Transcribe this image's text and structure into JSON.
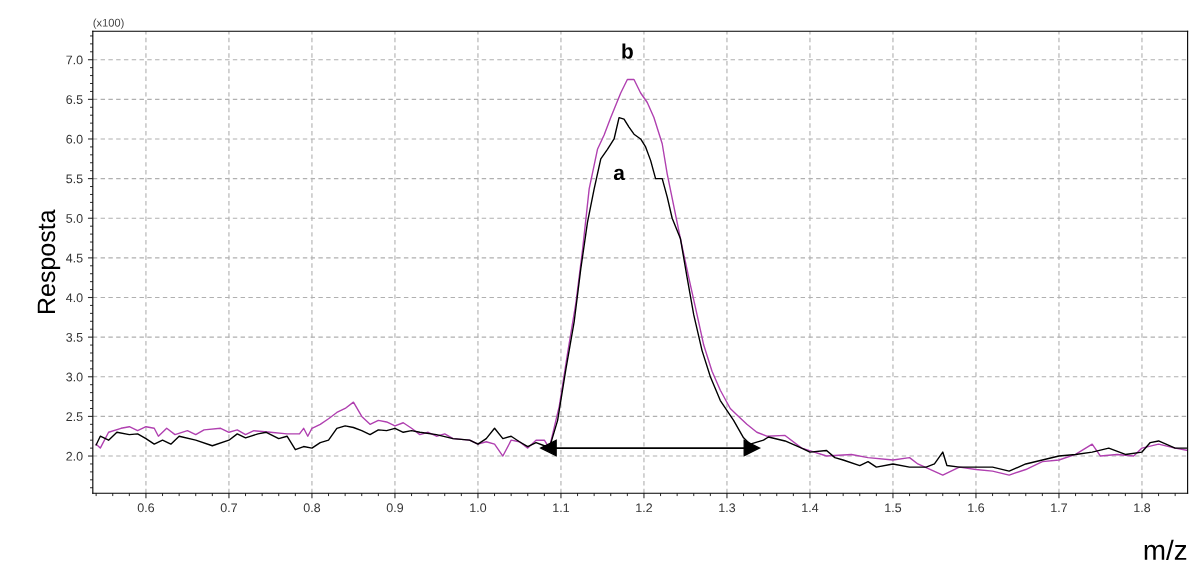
{
  "chart_data": {
    "type": "line",
    "xlabel": "m/z",
    "ylabel": "Resposta",
    "xlim": [
      0.536,
      1.855
    ],
    "ylim": [
      1.53,
      7.36
    ],
    "xticks": [
      0.6,
      0.7,
      0.8,
      0.9,
      {
        "value": 1,
        "label": "1.0"
      },
      1.1,
      1.2,
      1.3,
      1.4,
      1.5,
      1.6,
      1.7,
      1.8
    ],
    "yticks": [
      {
        "value": 2,
        "label": "2.0"
      },
      2.5,
      {
        "value": 3,
        "label": "3.0"
      },
      3.5,
      {
        "value": 4,
        "label": "4.0"
      },
      4.5,
      {
        "value": 5,
        "label": "5.0"
      },
      5.5,
      {
        "value": 6,
        "label": "6.0"
      },
      6.5,
      {
        "value": 7,
        "label": "7.0"
      }
    ],
    "grid": true,
    "legend": false,
    "marker": "none",
    "line_style": "solid",
    "annotations": [
      "(x100)"
    ],
    "series": [
      {
        "name": "b",
        "color": "#b040b0",
        "x": [
          0.54,
          0.545,
          0.555,
          0.57,
          0.58,
          0.59,
          0.6,
          0.61,
          0.615,
          0.625,
          0.635,
          0.65,
          0.66,
          0.67,
          0.69,
          0.7,
          0.71,
          0.72,
          0.73,
          0.75,
          0.77,
          0.785,
          0.79,
          0.795,
          0.8,
          0.81,
          0.82,
          0.83,
          0.84,
          0.85,
          0.86,
          0.87,
          0.88,
          0.89,
          0.9,
          0.91,
          0.92,
          0.93,
          0.94,
          0.95,
          0.96,
          0.97,
          0.99,
          1.0,
          1.01,
          1.02,
          1.03,
          1.04,
          1.05,
          1.06,
          1.07,
          1.08,
          1.086,
          1.098,
          1.108,
          1.118,
          1.126,
          1.134,
          1.144,
          1.152,
          1.16,
          1.172,
          1.18,
          1.188,
          1.196,
          1.204,
          1.212,
          1.222,
          1.228,
          1.236,
          1.244,
          1.254,
          1.264,
          1.272,
          1.282,
          1.292,
          1.304,
          1.314,
          1.324,
          1.336,
          1.348,
          1.37,
          1.39,
          1.42,
          1.45,
          1.47,
          1.5,
          1.52,
          1.53,
          1.56,
          1.58,
          1.6,
          1.62,
          1.64,
          1.66,
          1.68,
          1.7,
          1.72,
          1.74,
          1.75,
          1.77,
          1.79,
          1.8,
          1.82,
          1.84,
          1.855
        ],
        "values": [
          2.15,
          2.1,
          2.3,
          2.35,
          2.37,
          2.32,
          2.37,
          2.35,
          2.25,
          2.35,
          2.27,
          2.32,
          2.27,
          2.33,
          2.35,
          2.3,
          2.33,
          2.27,
          2.32,
          2.3,
          2.28,
          2.28,
          2.35,
          2.25,
          2.35,
          2.4,
          2.47,
          2.55,
          2.6,
          2.68,
          2.5,
          2.4,
          2.45,
          2.43,
          2.38,
          2.42,
          2.35,
          2.27,
          2.3,
          2.25,
          2.28,
          2.22,
          2.2,
          2.15,
          2.18,
          2.15,
          2.0,
          2.2,
          2.18,
          2.1,
          2.2,
          2.2,
          2.1,
          2.63,
          3.3,
          3.93,
          4.6,
          5.37,
          5.87,
          6.05,
          6.27,
          6.58,
          6.75,
          6.75,
          6.58,
          6.46,
          6.27,
          5.94,
          5.56,
          5.15,
          4.74,
          4.25,
          3.78,
          3.4,
          3.07,
          2.83,
          2.6,
          2.5,
          2.4,
          2.3,
          2.25,
          2.26,
          2.1,
          2.0,
          2.02,
          1.98,
          1.95,
          1.98,
          1.9,
          1.76,
          1.86,
          1.83,
          1.81,
          1.76,
          1.83,
          1.93,
          1.95,
          2.02,
          2.15,
          2.0,
          2.02,
          2.0,
          2.1,
          2.15,
          2.1,
          2.07
        ]
      },
      {
        "name": "a",
        "color": "#000000",
        "x": [
          0.54,
          0.545,
          0.555,
          0.565,
          0.58,
          0.59,
          0.6,
          0.61,
          0.62,
          0.63,
          0.64,
          0.66,
          0.68,
          0.7,
          0.71,
          0.72,
          0.735,
          0.745,
          0.76,
          0.77,
          0.78,
          0.79,
          0.8,
          0.81,
          0.82,
          0.83,
          0.84,
          0.85,
          0.86,
          0.87,
          0.88,
          0.89,
          0.9,
          0.91,
          0.92,
          0.93,
          0.95,
          0.97,
          0.99,
          1.0,
          1.01,
          1.02,
          1.03,
          1.04,
          1.05,
          1.06,
          1.07,
          1.08,
          1.086,
          1.096,
          1.106,
          1.116,
          1.124,
          1.132,
          1.14,
          1.148,
          1.156,
          1.164,
          1.17,
          1.176,
          1.182,
          1.188,
          1.196,
          1.202,
          1.208,
          1.214,
          1.222,
          1.228,
          1.234,
          1.244,
          1.252,
          1.26,
          1.27,
          1.28,
          1.292,
          1.308,
          1.32,
          1.328,
          1.344,
          1.35,
          1.37,
          1.39,
          1.4,
          1.42,
          1.43,
          1.44,
          1.46,
          1.47,
          1.48,
          1.5,
          1.52,
          1.54,
          1.55,
          1.56,
          1.565,
          1.58,
          1.6,
          1.62,
          1.64,
          1.66,
          1.68,
          1.7,
          1.72,
          1.74,
          1.76,
          1.78,
          1.8,
          1.81,
          1.82,
          1.84,
          1.855
        ],
        "values": [
          2.14,
          2.25,
          2.2,
          2.3,
          2.27,
          2.28,
          2.22,
          2.15,
          2.2,
          2.15,
          2.25,
          2.2,
          2.13,
          2.2,
          2.28,
          2.23,
          2.28,
          2.3,
          2.22,
          2.25,
          2.08,
          2.12,
          2.1,
          2.17,
          2.2,
          2.35,
          2.38,
          2.36,
          2.32,
          2.27,
          2.33,
          2.32,
          2.35,
          2.3,
          2.32,
          2.3,
          2.27,
          2.22,
          2.2,
          2.15,
          2.22,
          2.35,
          2.22,
          2.25,
          2.18,
          2.12,
          2.17,
          2.13,
          2.1,
          2.45,
          3.1,
          3.7,
          4.37,
          4.95,
          5.37,
          5.75,
          5.87,
          6.0,
          6.27,
          6.25,
          6.15,
          6.06,
          6.0,
          5.9,
          5.73,
          5.5,
          5.5,
          5.27,
          5.0,
          4.74,
          4.25,
          3.78,
          3.33,
          3.0,
          2.7,
          2.45,
          2.23,
          2.15,
          2.2,
          2.24,
          2.19,
          2.1,
          2.05,
          2.07,
          1.98,
          1.95,
          1.88,
          1.93,
          1.86,
          1.9,
          1.86,
          1.86,
          1.9,
          2.05,
          1.88,
          1.86,
          1.86,
          1.86,
          1.81,
          1.9,
          1.95,
          2.0,
          2.02,
          2.05,
          2.1,
          2.02,
          2.05,
          2.17,
          2.19,
          2.1,
          2.1
        ]
      },
      {
        "color": "#000000",
        "marker": "triangle",
        "x": [
          1.085,
          1.33
        ],
        "values": [
          2.1,
          2.1
        ]
      }
    ]
  }
}
